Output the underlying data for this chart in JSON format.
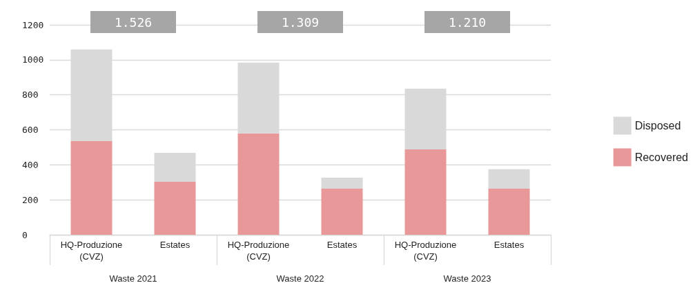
{
  "chart_data": {
    "type": "bar",
    "stacked": true,
    "categories": [
      "HQ-Produzione\n(CVZ)",
      "Estates",
      "HQ-Produzione\n(CVZ)",
      "Estates",
      "HQ-Produzione\n(CVZ)",
      "Estates"
    ],
    "series": [
      {
        "name": "Recovered",
        "color": "#e89898",
        "values": [
          535,
          303,
          579,
          264,
          488,
          264
        ]
      },
      {
        "name": "Disposed",
        "color": "#d9d9d9",
        "values": [
          524,
          165,
          405,
          63,
          347,
          111
        ]
      }
    ],
    "ylim": [
      0,
      1200
    ],
    "yticks": [
      0,
      200,
      400,
      600,
      800,
      1000,
      1200
    ],
    "grid": "y",
    "legend": "right",
    "annotations": [
      "Waste 2021",
      "Waste 2022",
      "Waste 2023",
      "1.526",
      "1.309",
      "1.210"
    ]
  }
}
